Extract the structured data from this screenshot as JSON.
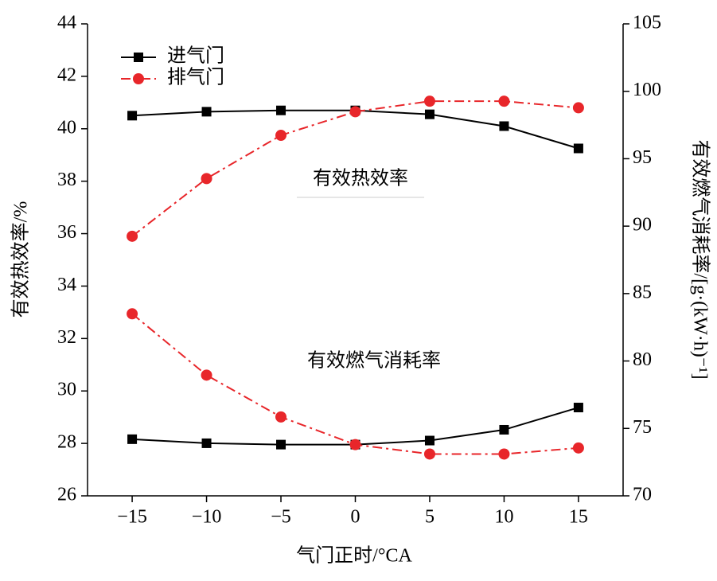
{
  "chart_data": {
    "type": "line",
    "xlabel": "气门正时/°CA",
    "ylabel": "有效热效率/%",
    "y2label": "有效燃气消耗率/[g·(kW·h)⁻¹]",
    "annotations": [
      "有效热效率",
      "有效燃气消耗率"
    ],
    "x": [
      -15,
      -10,
      -5,
      0,
      5,
      10,
      15
    ],
    "xlim": [
      -18,
      18
    ],
    "xticks": [
      {
        "value": -15,
        "label": "−15"
      },
      {
        "value": -10,
        "label": "−10"
      },
      {
        "value": -5,
        "label": "−5"
      },
      0,
      5,
      10,
      15
    ],
    "ylim": [
      26,
      44
    ],
    "yticks": [
      26,
      28,
      30,
      32,
      34,
      36,
      38,
      40,
      42,
      44
    ],
    "y2lim": [
      70,
      105
    ],
    "y2ticks": [
      70,
      75,
      80,
      85,
      90,
      95,
      100,
      105
    ],
    "legend": "upper left",
    "series": [
      {
        "name": "进气门",
        "color": "#000000",
        "marker": "square",
        "dash": "solid",
        "values": [
          40.5,
          40.65,
          40.7,
          40.7,
          40.55,
          40.1,
          39.25
        ]
      },
      {
        "name": "排气门",
        "color": "#e8262a",
        "marker": "circle",
        "dash": "dashdot",
        "values": [
          35.9,
          38.1,
          39.75,
          40.65,
          41.05,
          41.05,
          40.8
        ]
      },
      {
        "color": "#000000",
        "marker": "square",
        "dash": "solid",
        "axis": "y2",
        "values": [
          74.2,
          73.9,
          73.8,
          73.8,
          74.1,
          74.9,
          76.55
        ]
      },
      {
        "color": "#e8262a",
        "marker": "circle",
        "dash": "dashdot",
        "axis": "y2",
        "values": [
          83.5,
          78.95,
          75.85,
          73.8,
          73.1,
          73.1,
          73.55
        ]
      }
    ]
  }
}
